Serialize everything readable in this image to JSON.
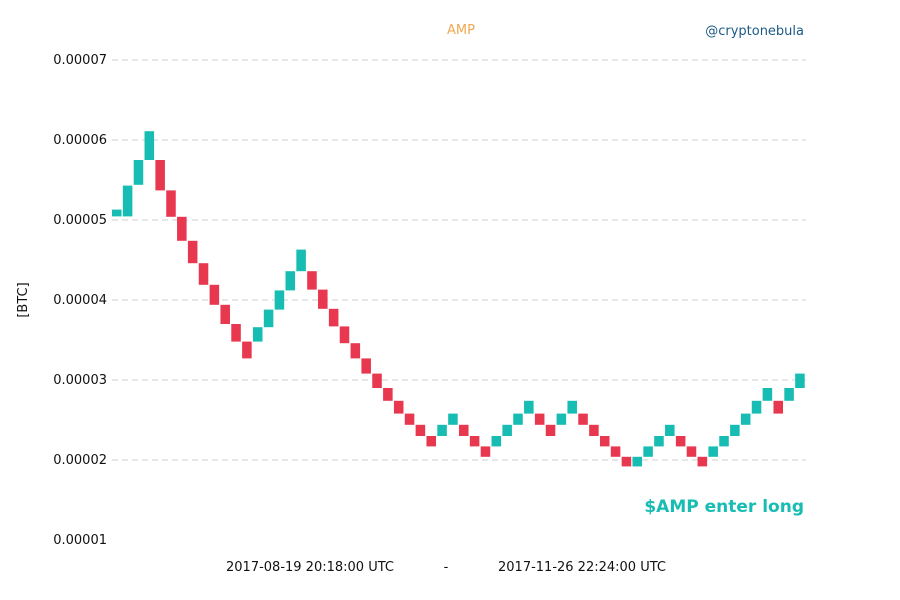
{
  "chart_data": {
    "type": "renko",
    "title": "AMP",
    "watermark": "@cryptonebula",
    "ylabel": "[BTC]",
    "signal_text": "$AMP enter long",
    "date_start": "2017-08-19 20:18:00 UTC",
    "date_separator": "-",
    "date_end": "2017-11-26 22:24:00 UTC",
    "ylim": [
      1e-05,
      7e-05
    ],
    "yticks": [
      "0.00001",
      "0.00002",
      "0.00003",
      "0.00004",
      "0.00005",
      "0.00006",
      "0.00007"
    ],
    "grid": true,
    "colors": {
      "up": "#17bdb2",
      "down": "#e8384f"
    },
    "bricks": [
      {
        "dir": "up",
        "low": 5.045e-05,
        "high": 5.13e-05
      },
      {
        "dir": "up",
        "low": 5.045e-05,
        "high": 5.43e-05
      },
      {
        "dir": "up",
        "low": 5.44e-05,
        "high": 5.75e-05
      },
      {
        "dir": "up",
        "low": 5.75e-05,
        "high": 6.11e-05
      },
      {
        "dir": "down",
        "low": 5.37e-05,
        "high": 5.75e-05
      },
      {
        "dir": "down",
        "low": 5.04e-05,
        "high": 5.37e-05
      },
      {
        "dir": "down",
        "low": 4.74e-05,
        "high": 5.04e-05
      },
      {
        "dir": "down",
        "low": 4.46e-05,
        "high": 4.74e-05
      },
      {
        "dir": "down",
        "low": 4.19e-05,
        "high": 4.46e-05
      },
      {
        "dir": "down",
        "low": 3.94e-05,
        "high": 4.19e-05
      },
      {
        "dir": "down",
        "low": 3.7e-05,
        "high": 3.94e-05
      },
      {
        "dir": "down",
        "low": 3.48e-05,
        "high": 3.7e-05
      },
      {
        "dir": "down",
        "low": 3.27e-05,
        "high": 3.48e-05
      },
      {
        "dir": "up",
        "low": 3.48e-05,
        "high": 3.66e-05
      },
      {
        "dir": "up",
        "low": 3.66e-05,
        "high": 3.88e-05
      },
      {
        "dir": "up",
        "low": 3.88e-05,
        "high": 4.12e-05
      },
      {
        "dir": "up",
        "low": 4.12e-05,
        "high": 4.36e-05
      },
      {
        "dir": "up",
        "low": 4.36e-05,
        "high": 4.63e-05
      },
      {
        "dir": "down",
        "low": 4.13e-05,
        "high": 4.36e-05
      },
      {
        "dir": "down",
        "low": 3.89e-05,
        "high": 4.13e-05
      },
      {
        "dir": "down",
        "low": 3.67e-05,
        "high": 3.89e-05
      },
      {
        "dir": "down",
        "low": 3.46e-05,
        "high": 3.67e-05
      },
      {
        "dir": "down",
        "low": 3.27e-05,
        "high": 3.46e-05
      },
      {
        "dir": "down",
        "low": 3.08e-05,
        "high": 3.27e-05
      },
      {
        "dir": "down",
        "low": 2.9e-05,
        "high": 3.08e-05
      },
      {
        "dir": "down",
        "low": 2.74e-05,
        "high": 2.9e-05
      },
      {
        "dir": "down",
        "low": 2.58e-05,
        "high": 2.74e-05
      },
      {
        "dir": "down",
        "low": 2.44e-05,
        "high": 2.58e-05
      },
      {
        "dir": "down",
        "low": 2.3e-05,
        "high": 2.44e-05
      },
      {
        "dir": "down",
        "low": 2.17e-05,
        "high": 2.3e-05
      },
      {
        "dir": "up",
        "low": 2.3e-05,
        "high": 2.44e-05
      },
      {
        "dir": "up",
        "low": 2.44e-05,
        "high": 2.58e-05
      },
      {
        "dir": "down",
        "low": 2.3e-05,
        "high": 2.44e-05
      },
      {
        "dir": "down",
        "low": 2.17e-05,
        "high": 2.3e-05
      },
      {
        "dir": "down",
        "low": 2.04e-05,
        "high": 2.17e-05
      },
      {
        "dir": "up",
        "low": 2.17e-05,
        "high": 2.3e-05
      },
      {
        "dir": "up",
        "low": 2.3e-05,
        "high": 2.44e-05
      },
      {
        "dir": "up",
        "low": 2.44e-05,
        "high": 2.58e-05
      },
      {
        "dir": "up",
        "low": 2.58e-05,
        "high": 2.74e-05
      },
      {
        "dir": "down",
        "low": 2.44e-05,
        "high": 2.58e-05
      },
      {
        "dir": "down",
        "low": 2.3e-05,
        "high": 2.44e-05
      },
      {
        "dir": "up",
        "low": 2.44e-05,
        "high": 2.58e-05
      },
      {
        "dir": "up",
        "low": 2.58e-05,
        "high": 2.74e-05
      },
      {
        "dir": "down",
        "low": 2.44e-05,
        "high": 2.58e-05
      },
      {
        "dir": "down",
        "low": 2.3e-05,
        "high": 2.44e-05
      },
      {
        "dir": "down",
        "low": 2.17e-05,
        "high": 2.3e-05
      },
      {
        "dir": "down",
        "low": 2.04e-05,
        "high": 2.17e-05
      },
      {
        "dir": "down",
        "low": 1.92e-05,
        "high": 2.04e-05
      },
      {
        "dir": "up",
        "low": 1.92e-05,
        "high": 2.04e-05
      },
      {
        "dir": "up",
        "low": 2.04e-05,
        "high": 2.17e-05
      },
      {
        "dir": "up",
        "low": 2.17e-05,
        "high": 2.3e-05
      },
      {
        "dir": "up",
        "low": 2.3e-05,
        "high": 2.44e-05
      },
      {
        "dir": "down",
        "low": 2.17e-05,
        "high": 2.3e-05
      },
      {
        "dir": "down",
        "low": 2.04e-05,
        "high": 2.17e-05
      },
      {
        "dir": "down",
        "low": 1.92e-05,
        "high": 2.04e-05
      },
      {
        "dir": "up",
        "low": 2.04e-05,
        "high": 2.17e-05
      },
      {
        "dir": "up",
        "low": 2.17e-05,
        "high": 2.3e-05
      },
      {
        "dir": "up",
        "low": 2.3e-05,
        "high": 2.44e-05
      },
      {
        "dir": "up",
        "low": 2.44e-05,
        "high": 2.58e-05
      },
      {
        "dir": "up",
        "low": 2.58e-05,
        "high": 2.74e-05
      },
      {
        "dir": "up",
        "low": 2.74e-05,
        "high": 2.9e-05
      },
      {
        "dir": "down",
        "low": 2.58e-05,
        "high": 2.74e-05
      },
      {
        "dir": "up",
        "low": 2.74e-05,
        "high": 2.9e-05
      },
      {
        "dir": "up",
        "low": 2.9e-05,
        "high": 3.08e-05
      }
    ]
  }
}
